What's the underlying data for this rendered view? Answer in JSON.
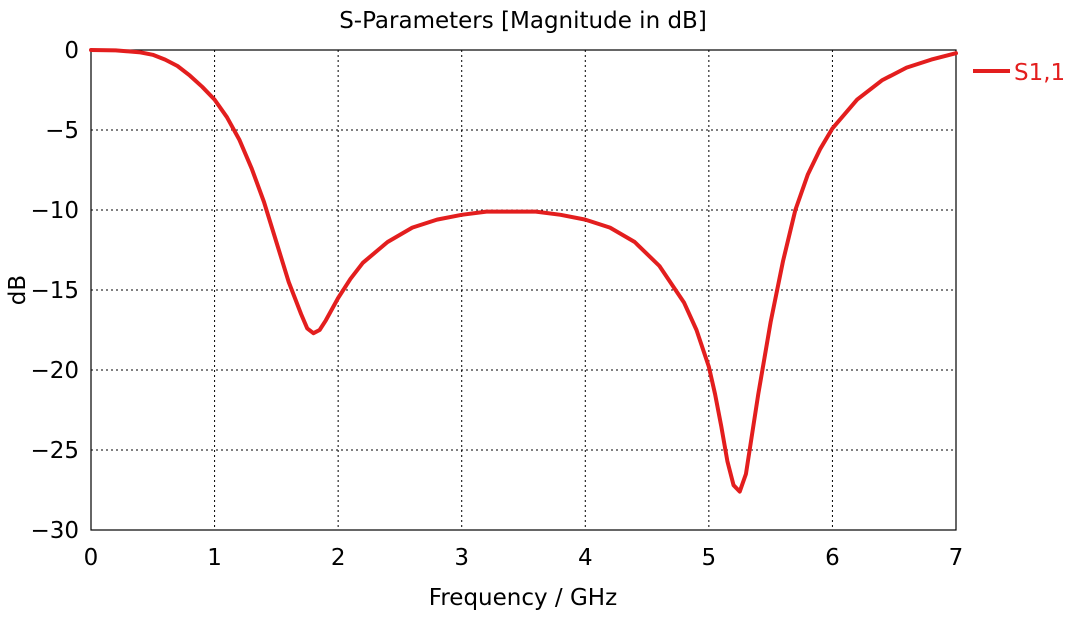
{
  "chart_data": {
    "type": "line",
    "title": "S-Parameters [Magnitude in dB]",
    "xlabel": "Frequency / GHz",
    "ylabel": "dB",
    "xlim": [
      0,
      7
    ],
    "ylim": [
      -30,
      0
    ],
    "xticks": [
      0,
      1,
      2,
      3,
      4,
      5,
      6,
      7
    ],
    "yticks": [
      0,
      -5,
      -10,
      -15,
      -20,
      -25,
      -30
    ],
    "grid": true,
    "legend_position": "right",
    "series": [
      {
        "name": "S1,1",
        "color": "#e31e1e",
        "x": [
          0,
          0.2,
          0.4,
          0.5,
          0.6,
          0.7,
          0.8,
          0.9,
          1.0,
          1.1,
          1.2,
          1.3,
          1.4,
          1.5,
          1.6,
          1.7,
          1.75,
          1.8,
          1.85,
          1.9,
          2.0,
          2.1,
          2.2,
          2.4,
          2.6,
          2.8,
          3.0,
          3.2,
          3.4,
          3.6,
          3.8,
          4.0,
          4.2,
          4.4,
          4.6,
          4.8,
          4.9,
          5.0,
          5.05,
          5.1,
          5.15,
          5.2,
          5.25,
          5.3,
          5.35,
          5.4,
          5.5,
          5.6,
          5.7,
          5.8,
          5.9,
          6.0,
          6.2,
          6.4,
          6.6,
          6.8,
          7.0
        ],
        "y": [
          0,
          -0.02,
          -0.15,
          -0.3,
          -0.6,
          -1.0,
          -1.6,
          -2.3,
          -3.1,
          -4.2,
          -5.6,
          -7.4,
          -9.5,
          -12.0,
          -14.5,
          -16.5,
          -17.4,
          -17.7,
          -17.5,
          -16.9,
          -15.5,
          -14.3,
          -13.3,
          -12.0,
          -11.1,
          -10.6,
          -10.3,
          -10.1,
          -10.1,
          -10.1,
          -10.3,
          -10.6,
          -11.1,
          -12.0,
          -13.5,
          -15.8,
          -17.5,
          -19.8,
          -21.5,
          -23.5,
          -25.7,
          -27.2,
          -27.6,
          -26.5,
          -24.0,
          -21.5,
          -17.0,
          -13.2,
          -10.0,
          -7.8,
          -6.2,
          -4.9,
          -3.1,
          -1.9,
          -1.1,
          -0.6,
          -0.2
        ]
      }
    ]
  }
}
